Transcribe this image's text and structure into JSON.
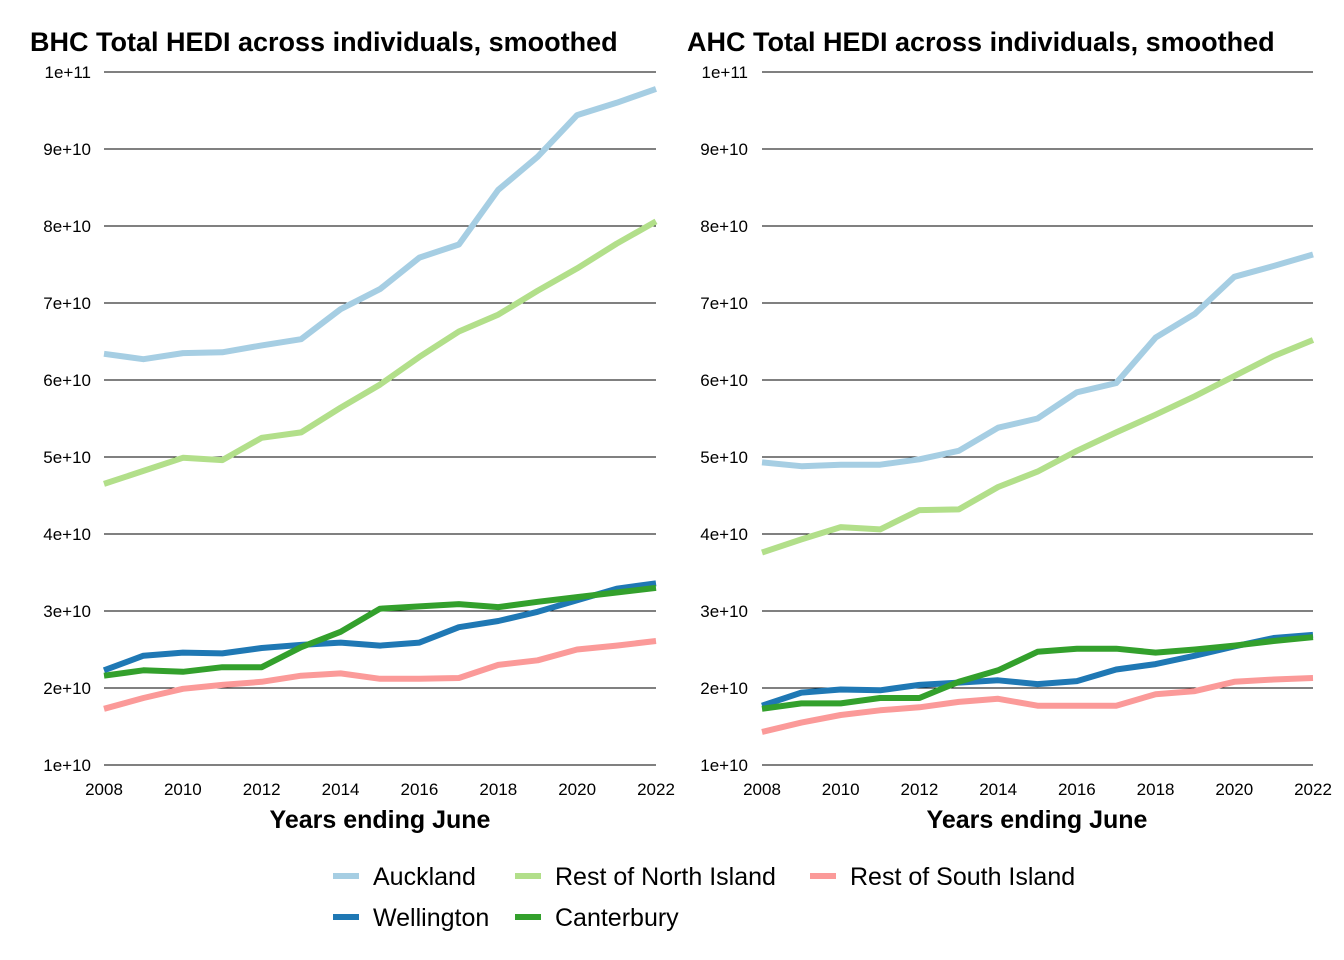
{
  "chart_data": [
    {
      "type": "line",
      "title": "BHC Total HEDI across individuals, smoothed",
      "xlabel": "Years ending June",
      "ylabel": "",
      "x": [
        2008,
        2009,
        2010,
        2011,
        2012,
        2013,
        2014,
        2015,
        2016,
        2017,
        2018,
        2019,
        2020,
        2021,
        2022
      ],
      "xlim": [
        2008,
        2022
      ],
      "ylim": [
        10000000000,
        100000000000
      ],
      "x_ticks": [
        "2008",
        "2010",
        "2012",
        "2014",
        "2016",
        "2018",
        "2020",
        "2022"
      ],
      "y_ticks": [
        "1e+10",
        "2e+10",
        "3e+10",
        "4e+10",
        "5e+10",
        "6e+10",
        "7e+10",
        "8e+10",
        "9e+10",
        "1e+11"
      ],
      "grid": "horizontal",
      "series": [
        {
          "name": "Auckland",
          "color": "#a6cee3",
          "values": [
            63400000000,
            62700000000,
            63500000000,
            63600000000,
            64500000000,
            65300000000,
            69200000000,
            71800000000,
            75900000000,
            77600000000,
            84700000000,
            89000000000,
            94400000000,
            96000000000,
            97800000000
          ]
        },
        {
          "name": "Rest of North Island",
          "color": "#b2df8a",
          "values": [
            46500000000,
            48200000000,
            49900000000,
            49600000000,
            52500000000,
            53200000000,
            56400000000,
            59400000000,
            63000000000,
            66300000000,
            68500000000,
            71600000000,
            74500000000,
            77700000000,
            80600000000
          ]
        },
        {
          "name": "Rest of South Island",
          "color": "#fb9a99",
          "values": [
            17300000000,
            18700000000,
            19900000000,
            20400000000,
            20800000000,
            21600000000,
            21900000000,
            21200000000,
            21200000000,
            21300000000,
            23000000000,
            23600000000,
            25000000000,
            25500000000,
            26100000000
          ]
        },
        {
          "name": "Wellington",
          "color": "#1f78b4",
          "values": [
            22300000000,
            24200000000,
            24600000000,
            24500000000,
            25200000000,
            25600000000,
            25900000000,
            25500000000,
            25900000000,
            27900000000,
            28700000000,
            29900000000,
            31400000000,
            32900000000,
            33600000000
          ]
        },
        {
          "name": "Canterbury",
          "color": "#33a02c",
          "values": [
            21600000000,
            22300000000,
            22100000000,
            22700000000,
            22700000000,
            25300000000,
            27300000000,
            30300000000,
            30600000000,
            30900000000,
            30500000000,
            31200000000,
            31800000000,
            32400000000,
            33000000000
          ]
        }
      ]
    },
    {
      "type": "line",
      "title": "AHC Total HEDI across individuals, smoothed",
      "xlabel": "Years ending June",
      "ylabel": "",
      "x": [
        2008,
        2009,
        2010,
        2011,
        2012,
        2013,
        2014,
        2015,
        2016,
        2017,
        2018,
        2019,
        2020,
        2021,
        2022
      ],
      "xlim": [
        2008,
        2022
      ],
      "ylim": [
        10000000000,
        100000000000
      ],
      "x_ticks": [
        "2008",
        "2010",
        "2012",
        "2014",
        "2016",
        "2018",
        "2020",
        "2022"
      ],
      "y_ticks": [
        "1e+10",
        "2e+10",
        "3e+10",
        "4e+10",
        "5e+10",
        "6e+10",
        "7e+10",
        "8e+10",
        "9e+10",
        "1e+11"
      ],
      "grid": "horizontal",
      "series": [
        {
          "name": "Auckland",
          "color": "#a6cee3",
          "values": [
            49300000000,
            48800000000,
            49000000000,
            49000000000,
            49700000000,
            50800000000,
            53800000000,
            55000000000,
            58400000000,
            59600000000,
            65500000000,
            68600000000,
            73400000000,
            74800000000,
            76300000000
          ]
        },
        {
          "name": "Rest of North Island",
          "color": "#b2df8a",
          "values": [
            37600000000,
            39300000000,
            40900000000,
            40600000000,
            43100000000,
            43200000000,
            46100000000,
            48100000000,
            50800000000,
            53200000000,
            55500000000,
            57900000000,
            60500000000,
            63100000000,
            65200000000
          ]
        },
        {
          "name": "Rest of South Island",
          "color": "#fb9a99",
          "values": [
            14300000000,
            15500000000,
            16500000000,
            17100000000,
            17500000000,
            18200000000,
            18600000000,
            17700000000,
            17700000000,
            17700000000,
            19200000000,
            19600000000,
            20800000000,
            21100000000,
            21300000000
          ]
        },
        {
          "name": "Wellington",
          "color": "#1f78b4",
          "values": [
            17700000000,
            19400000000,
            19800000000,
            19700000000,
            20400000000,
            20700000000,
            21000000000,
            20500000000,
            20900000000,
            22400000000,
            23100000000,
            24200000000,
            25400000000,
            26500000000,
            26900000000
          ]
        },
        {
          "name": "Canterbury",
          "color": "#33a02c",
          "values": [
            17300000000,
            18000000000,
            18000000000,
            18700000000,
            18700000000,
            20800000000,
            22300000000,
            24700000000,
            25100000000,
            25100000000,
            24600000000,
            25000000000,
            25500000000,
            26100000000,
            26600000000
          ]
        }
      ]
    }
  ],
  "legend": {
    "placement": "bottom",
    "items": [
      {
        "label": "Auckland",
        "color": "#a6cee3"
      },
      {
        "label": "Rest of North Island",
        "color": "#b2df8a"
      },
      {
        "label": "Rest of South Island",
        "color": "#fb9a99"
      },
      {
        "label": "Wellington",
        "color": "#1f78b4"
      },
      {
        "label": "Canterbury",
        "color": "#33a02c"
      }
    ]
  }
}
